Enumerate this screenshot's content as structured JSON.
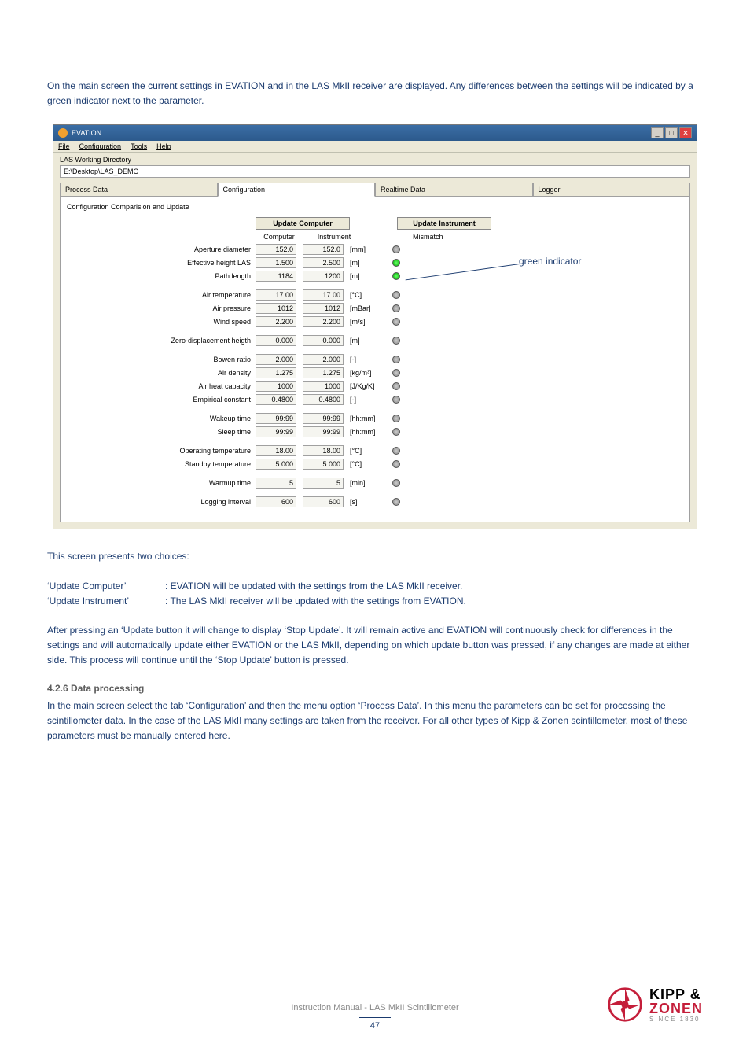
{
  "colors": {
    "primary_text": "#1a3a6e",
    "heading_gray": "#5d5d5d",
    "logo_red": "#c41e3a",
    "win_bg": "#ece9d8",
    "led_green": "#0a0",
    "led_red": "#a00"
  },
  "intro": "On the main screen the current settings in EVATION and in the LAS MkII receiver are displayed. Any differences between the settings will be indicated by a green indicator next to the parameter.",
  "window": {
    "title": "EVATION",
    "menu": {
      "file": "File",
      "configuration": "Configuration",
      "tools": "Tools",
      "help": "Help"
    },
    "working_dir_label": "LAS Working Directory",
    "working_dir_value": "E:\\Desktop\\LAS_DEMO",
    "tabs": {
      "process": "Process Data",
      "config": "Configuration",
      "realtime": "Realtime Data",
      "logger": "Logger"
    },
    "group_label": "Configuration Comparision and Update",
    "buttons": {
      "update_computer": "Update Computer",
      "update_instrument": "Update Instrument"
    },
    "col_headers": {
      "computer": "Computer",
      "instrument": "Instrument",
      "mismatch": "Mismatch"
    },
    "groups": [
      [
        {
          "label": "Aperture diameter",
          "v1": "152.0",
          "v2": "152.0",
          "unit": "[mm]",
          "led": "gray"
        },
        {
          "label": "Effective height LAS",
          "v1": "1.500",
          "v2": "2.500",
          "unit": "[m]",
          "led": "green"
        },
        {
          "label": "Path length",
          "v1": "1184",
          "v2": "1200",
          "unit": "[m]",
          "led": "green"
        }
      ],
      [
        {
          "label": "Air temperature",
          "v1": "17.00",
          "v2": "17.00",
          "unit": "[°C]",
          "led": "gray"
        },
        {
          "label": "Air pressure",
          "v1": "1012",
          "v2": "1012",
          "unit": "[mBar]",
          "led": "gray"
        },
        {
          "label": "Wind speed",
          "v1": "2.200",
          "v2": "2.200",
          "unit": "[m/s]",
          "led": "gray"
        }
      ],
      [
        {
          "label": "Zero-displacement heigth",
          "v1": "0.000",
          "v2": "0.000",
          "unit": "[m]",
          "led": "gray"
        }
      ],
      [
        {
          "label": "Bowen ratio",
          "v1": "2.000",
          "v2": "2.000",
          "unit": "[-]",
          "led": "gray"
        },
        {
          "label": "Air density",
          "v1": "1.275",
          "v2": "1.275",
          "unit": "[kg/m³]",
          "led": "gray"
        },
        {
          "label": "Air heat capacity",
          "v1": "1000",
          "v2": "1000",
          "unit": "[J/Kg/K]",
          "led": "gray"
        },
        {
          "label": "Empirical constant",
          "v1": "0.4800",
          "v2": "0.4800",
          "unit": "[-]",
          "led": "gray"
        }
      ],
      [
        {
          "label": "Wakeup time",
          "v1": "99:99",
          "v2": "99:99",
          "unit": "[hh:mm]",
          "led": "gray"
        },
        {
          "label": "Sleep time",
          "v1": "99:99",
          "v2": "99:99",
          "unit": "[hh:mm]",
          "led": "gray"
        }
      ],
      [
        {
          "label": "Operating temperature",
          "v1": "18.00",
          "v2": "18.00",
          "unit": "[°C]",
          "led": "gray"
        },
        {
          "label": "Standby temperature",
          "v1": "5.000",
          "v2": "5.000",
          "unit": "[°C]",
          "led": "gray"
        }
      ],
      [
        {
          "label": "Warmup time",
          "v1": "5",
          "v2": "5",
          "unit": "[min]",
          "led": "gray"
        }
      ],
      [
        {
          "label": "Logging interval",
          "v1": "600",
          "v2": "600",
          "unit": "[s]",
          "led": "gray"
        }
      ]
    ],
    "green_indicator_label": "green indicator"
  },
  "choices_intro": "This screen presents two choices:",
  "choice1_key": "‘Update Computer’",
  "choice1_val": ": EVATION will be updated with the settings from the LAS MkII receiver.",
  "choice2_key": "‘Update Instrument’",
  "choice2_val": ": The LAS MkII receiver will be updated with the settings from EVATION.",
  "update_para": "After pressing an ‘Update button it will change to display ‘Stop Update’. It will remain active and EVATION will continuously check for differences in the settings and will automatically update either EVATION or the LAS MkII, depending on which update button was pressed, if any changes are made at either side. This process will continue until the ‘Stop Update’ button is pressed.",
  "section_heading": "4.2.6 Data processing",
  "section_para": "In the main screen select the tab ‘Configuration’ and then the menu option ‘Process Data’. In this menu the parameters can be set for processing the scintillometer data. In the case of the LAS MkII many settings are taken from the receiver. For all other types of Kipp & Zonen scintillometer, most of these parameters must be manually entered here.",
  "footer_text": "Instruction Manual - LAS MkII Scintillometer",
  "page_number": "47",
  "logo": {
    "line1": "KIPP &",
    "line2": "ZONEN",
    "line3": "SINCE 1830"
  }
}
